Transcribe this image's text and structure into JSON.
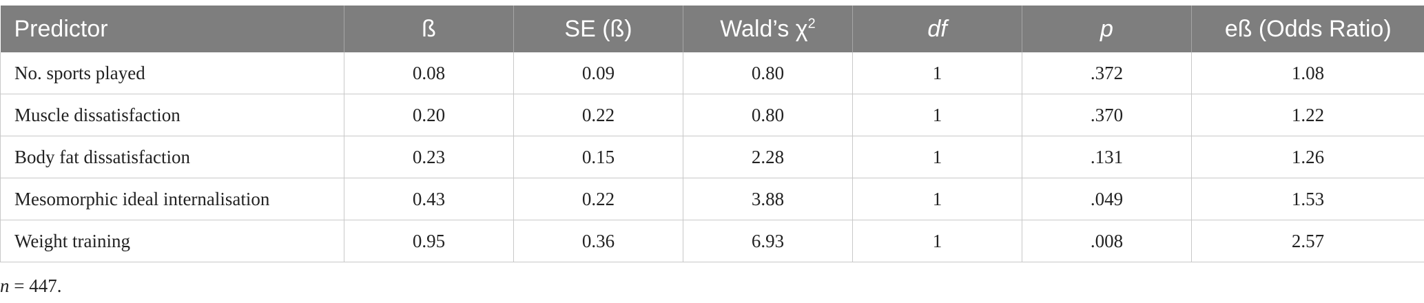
{
  "table": {
    "headers": {
      "predictor": "Predictor",
      "beta": "ß",
      "se": "SE (ß)",
      "wald": "Wald’s χ",
      "wald_sup": "2",
      "df": "df",
      "p": "p",
      "odds": "eß (Odds Ratio)"
    },
    "rows": [
      {
        "predictor": "No. sports played",
        "beta": "0.08",
        "se": "0.09",
        "wald": "0.80",
        "df": "1",
        "p": ".372",
        "odds": "1.08"
      },
      {
        "predictor": "Muscle dissatisfaction",
        "beta": "0.20",
        "se": "0.22",
        "wald": "0.80",
        "df": "1",
        "p": ".370",
        "odds": "1.22"
      },
      {
        "predictor": "Body fat dissatisfaction",
        "beta": "0.23",
        "se": "0.15",
        "wald": "2.28",
        "df": "1",
        "p": ".131",
        "odds": "1.26"
      },
      {
        "predictor": "Mesomorphic ideal internalisation",
        "beta": "0.43",
        "se": "0.22",
        "wald": "3.88",
        "df": "1",
        "p": ".049",
        "odds": "1.53"
      },
      {
        "predictor": "Weight training",
        "beta": "0.95",
        "se": "0.36",
        "wald": "6.93",
        "df": "1",
        "p": ".008",
        "odds": "2.57"
      }
    ]
  },
  "note": {
    "variable": "n",
    "text": " = 447."
  }
}
